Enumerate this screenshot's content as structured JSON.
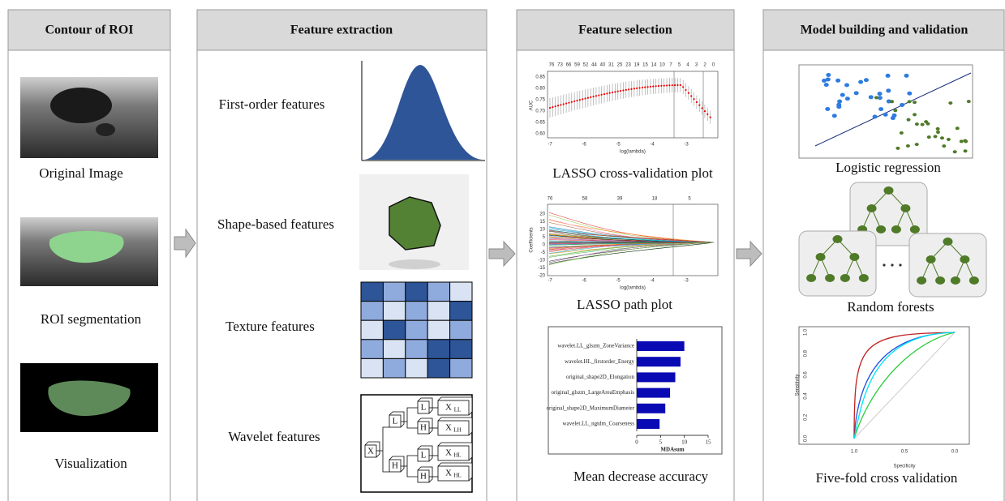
{
  "panels": [
    {
      "title": "Contour of ROI",
      "items": [
        "Original Image",
        "ROI segmentation",
        "Visualization"
      ]
    },
    {
      "title": "Feature extraction",
      "items": [
        "First-order features",
        "Shape-based features",
        "Texture features",
        "Wavelet features"
      ]
    },
    {
      "title": "Feature selection",
      "items": [
        "LASSO cross-validation plot",
        "LASSO path plot",
        "Mean decrease accuracy"
      ]
    },
    {
      "title": "Model building and validation",
      "items": [
        "Logistic regression",
        "Random forests",
        "Five-fold cross validation"
      ]
    }
  ],
  "wavelet": {
    "root": "X",
    "level1": [
      "L",
      "H"
    ],
    "level2": [
      "L",
      "H",
      "L",
      "H"
    ],
    "outputs": [
      {
        "base": "X",
        "sub": "LL"
      },
      {
        "base": "X",
        "sub": "LH"
      },
      {
        "base": "X",
        "sub": "HL"
      },
      {
        "base": "X",
        "sub": "HL"
      }
    ]
  },
  "lasso_cv": {
    "top_ticks": [
      "76",
      "73",
      "66",
      "59",
      "52",
      "44",
      "40",
      "31",
      "25",
      "23",
      "19",
      "15",
      "14",
      "10",
      "7",
      "5",
      "4",
      "3",
      "2",
      "0"
    ],
    "xticks": [
      "-7",
      "-6",
      "-5",
      "-4",
      "-3"
    ],
    "yticks": [
      "0.85",
      "0.80",
      "0.75",
      "0.70",
      "0.65",
      "0.60"
    ],
    "x_label": "log(lambda)",
    "y_label": "AUC"
  },
  "lasso_path": {
    "top_ticks": [
      "76",
      "58",
      "39",
      "18",
      "5"
    ],
    "xticks": [
      "-7",
      "-6",
      "-5",
      "-4",
      "-3"
    ],
    "yticks": [
      "20",
      "15",
      "10",
      "5",
      "0",
      "-5",
      "-10",
      "-15",
      "-20"
    ],
    "x_label": "log(lambda)",
    "y_label": "Coefficients"
  },
  "mda": {
    "features": [
      "wavelet.LL_glszm_ZoneVariance",
      "wavelet.HL_firstorder_Energy",
      "original_shape2D_Elongation",
      "original_glszm_LargeAreaEmphasis",
      "original_shape2D_MaximumDiameter",
      "wavelet.LL_ngtdm_Coarseness"
    ],
    "values": [
      10,
      9.2,
      8.1,
      7,
      6,
      4.8
    ],
    "xlim": [
      0,
      15
    ],
    "xticks": [
      0,
      5,
      10,
      15
    ],
    "x_label": "MDAsum",
    "color": "#0a0ab4"
  },
  "roc": {
    "xticks": [
      "1.0",
      "0.5",
      "0.0"
    ],
    "yticks": [
      "1.0",
      "0.8",
      "0.6",
      "0.4",
      "0.2",
      "0.0"
    ],
    "x_label": "Specificity",
    "y_label": "Sensitivity"
  }
}
